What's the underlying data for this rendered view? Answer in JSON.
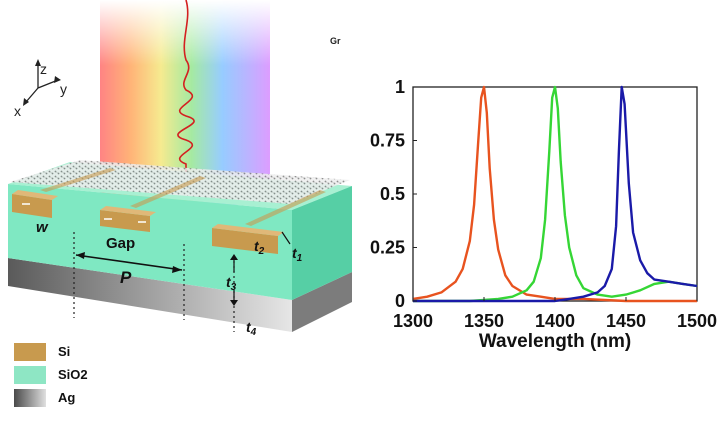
{
  "schematic": {
    "axes": {
      "z": "z",
      "y": "y",
      "x": "x"
    },
    "labels": {
      "w": "w",
      "gap": "Gap",
      "period": "P",
      "t1": "t1",
      "t2": "t2",
      "t3": "t3",
      "t4": "t4"
    },
    "corner_text": "Gr",
    "legend": [
      {
        "label": "Si",
        "color": "#c89a4e"
      },
      {
        "label": "SiO2",
        "color": "#8ee6c4"
      },
      {
        "label": "Ag",
        "color": "#7a7a7a"
      }
    ]
  },
  "chart_data": {
    "type": "line",
    "xlabel": "Wavelength (nm)",
    "ylabel": "",
    "xlim": [
      1300,
      1500
    ],
    "ylim": [
      0,
      1
    ],
    "xticks": [
      "1300",
      "1350",
      "1400",
      "1450",
      "1500"
    ],
    "yticks": [
      "0",
      "0.25",
      "0.5",
      "0.75",
      "1"
    ],
    "grid": false,
    "series": [
      {
        "color": "#e8531f",
        "x": [
          1300,
          1310,
          1320,
          1330,
          1335,
          1340,
          1343,
          1346,
          1348,
          1350,
          1352,
          1354,
          1357,
          1360,
          1365,
          1370,
          1380,
          1390,
          1400,
          1420,
          1450,
          1500
        ],
        "y": [
          0.01,
          0.02,
          0.04,
          0.09,
          0.15,
          0.28,
          0.45,
          0.75,
          0.95,
          1.0,
          0.88,
          0.62,
          0.38,
          0.24,
          0.12,
          0.07,
          0.03,
          0.02,
          0.01,
          0.01,
          0.0,
          0.0
        ]
      },
      {
        "color": "#35d635",
        "x": [
          1300,
          1340,
          1360,
          1370,
          1380,
          1385,
          1390,
          1393,
          1396,
          1398,
          1400,
          1402,
          1404,
          1407,
          1410,
          1415,
          1420,
          1430,
          1440,
          1450,
          1460,
          1470,
          1480,
          1490,
          1500
        ],
        "y": [
          0.0,
          0.0,
          0.01,
          0.02,
          0.05,
          0.09,
          0.2,
          0.38,
          0.7,
          0.95,
          1.0,
          0.9,
          0.65,
          0.4,
          0.25,
          0.12,
          0.06,
          0.03,
          0.02,
          0.03,
          0.05,
          0.08,
          0.09,
          0.08,
          0.07
        ]
      },
      {
        "color": "#1a1aa8",
        "x": [
          1300,
          1350,
          1380,
          1400,
          1410,
          1420,
          1430,
          1435,
          1440,
          1443,
          1445,
          1447,
          1449,
          1452,
          1455,
          1460,
          1465,
          1470,
          1480,
          1490,
          1500
        ],
        "y": [
          0.0,
          0.0,
          0.0,
          0.0,
          0.01,
          0.02,
          0.04,
          0.07,
          0.15,
          0.35,
          0.7,
          1.0,
          0.92,
          0.55,
          0.32,
          0.19,
          0.13,
          0.1,
          0.09,
          0.08,
          0.07
        ]
      }
    ]
  }
}
